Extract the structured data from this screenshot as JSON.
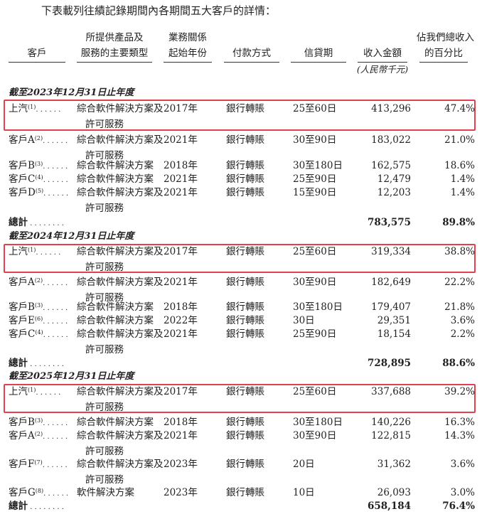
{
  "intro": "下表載列往績記錄期間內各期間五大客戶的詳情：",
  "columns": {
    "customer": "客戶",
    "product": [
      "所提供產品及",
      "服務的主要類型"
    ],
    "start_year": [
      "業務關係",
      "起始年份"
    ],
    "payment": "付款方式",
    "credit": "信貸期",
    "amount": "收入金額",
    "amount_unit": "(人民幣千元)",
    "pct": [
      "佔我們總收入",
      "的百分比"
    ]
  },
  "highlight_color": "#e2404f",
  "sections": [
    {
      "title": "截至2023年12月31日止年度",
      "rows": [
        {
          "name": "上汽",
          "note": "(1)",
          "product": [
            "綜合軟件解決方案及",
            "許可服務"
          ],
          "year": "2017年",
          "payment": "銀行轉賬",
          "credit": "25至60日",
          "amount": "413,296",
          "pct": "47.4%",
          "highlighted": true
        },
        {
          "name": "客戶A",
          "note": "(2)",
          "product": [
            "綜合軟件解決方案及",
            "許可服務"
          ],
          "year": "2021年",
          "payment": "銀行轉賬",
          "credit": "30至90日",
          "amount": "183,022",
          "pct": "21.0%"
        },
        {
          "name": "客戶B",
          "note": "(3)",
          "product": [
            "綜合軟件解決方案"
          ],
          "year": "2018年",
          "payment": "銀行轉賬",
          "credit": "30至180日",
          "amount": "162,575",
          "pct": "18.6%"
        },
        {
          "name": "客戶C",
          "note": "(4)",
          "product": [
            "綜合軟件解決方案"
          ],
          "year": "2021年",
          "payment": "銀行轉賬",
          "credit": "25至90日",
          "amount": "12,479",
          "pct": "1.4%"
        },
        {
          "name": "客戶D",
          "note": "(5)",
          "product": [
            "綜合軟件解決方案及",
            "許可服務"
          ],
          "year": "2021年",
          "payment": "銀行轉賬",
          "credit": "15至90日",
          "amount": "12,203",
          "pct": "1.4%"
        }
      ],
      "total": {
        "label": "總計",
        "amount": "783,575",
        "pct": "89.8%"
      }
    },
    {
      "title": "截至2024年12月31日止年度",
      "rows": [
        {
          "name": "上汽",
          "note": "(1)",
          "product": [
            "綜合軟件解決方案及",
            "許可服務"
          ],
          "year": "2017年",
          "payment": "銀行轉賬",
          "credit": "25至60日",
          "amount": "319,334",
          "pct": "38.8%",
          "highlighted": true
        },
        {
          "name": "客戶A",
          "note": "(2)",
          "product": [
            "綜合軟件解決方案及",
            "許可服務"
          ],
          "year": "2021年",
          "payment": "銀行轉賬",
          "credit": "30至90日",
          "amount": "182,649",
          "pct": "22.2%"
        },
        {
          "name": "客戶B",
          "note": "(3)",
          "product": [
            "綜合軟件解決方案"
          ],
          "year": "2018年",
          "payment": "銀行轉賬",
          "credit": "30至180日",
          "amount": "179,407",
          "pct": "21.8%"
        },
        {
          "name": "客戶E",
          "note": "(6)",
          "product": [
            "綜合軟件解決方案"
          ],
          "year": "2022年",
          "payment": "銀行轉賬",
          "credit": "30日",
          "amount": "29,351",
          "pct": "3.6%"
        },
        {
          "name": "客戶C",
          "note": "(4)",
          "product": [
            "綜合軟件解決方案及",
            "許可服務"
          ],
          "year": "2021年",
          "payment": "銀行轉賬",
          "credit": "25至90日",
          "amount": "18,154",
          "pct": "2.2%"
        }
      ],
      "total": {
        "label": "總計",
        "amount": "728,895",
        "pct": "88.6%"
      }
    },
    {
      "title": "截至2025年12月31日止年度",
      "rows": [
        {
          "name": "上汽",
          "note": "(1)",
          "product": [
            "綜合軟件解決方案及",
            "許可服務"
          ],
          "year": "2017年",
          "payment": "銀行轉賬",
          "credit": "25至60日",
          "amount": "337,688",
          "pct": "39.2%",
          "highlighted": true
        },
        {
          "name": "客戶B",
          "note": "(3)",
          "product": [
            "綜合軟件解決方案"
          ],
          "year": "2018年",
          "payment": "銀行轉賬",
          "credit": "30至180日",
          "amount": "140,226",
          "pct": "16.3%"
        },
        {
          "name": "客戶A",
          "note": "(2)",
          "product": [
            "綜合軟件解決方案及",
            "許可服務"
          ],
          "year": "2021年",
          "payment": "銀行轉賬",
          "credit": "30至90日",
          "amount": "122,815",
          "pct": "14.3%"
        },
        {
          "name": "客戶F",
          "note": "(7)",
          "product": [
            "綜合軟件解決方案及",
            "許可服務"
          ],
          "year": "2023年",
          "payment": "銀行轉賬",
          "credit": "20日",
          "amount": "31,362",
          "pct": "3.6%"
        },
        {
          "name": "客戶G",
          "note": "(8)",
          "product": [
            "軟件解決方案"
          ],
          "year": "2023年",
          "payment": "銀行轉賬",
          "credit": "10日",
          "amount": "26,093",
          "pct": "3.0%"
        }
      ],
      "total": {
        "label": "總計",
        "amount": "658,184",
        "pct": "76.4%"
      }
    }
  ]
}
